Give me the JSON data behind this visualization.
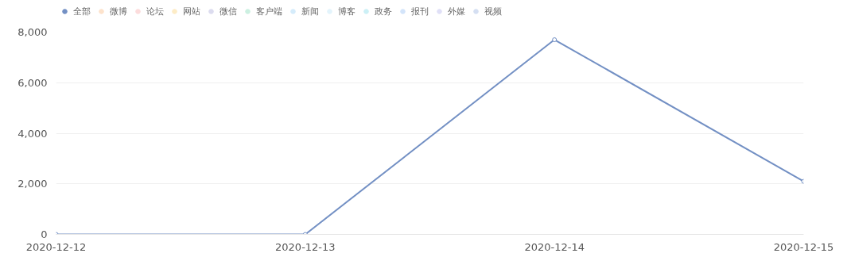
{
  "chart_data": {
    "type": "line",
    "categories": [
      "2020-12-12",
      "2020-12-13",
      "2020-12-14",
      "2020-12-15"
    ],
    "series": [
      {
        "name": "全部",
        "color": "#7390c4",
        "values": [
          0,
          0,
          7700,
          2100
        ]
      },
      {
        "name": "微博",
        "color": "#fde3cc",
        "values": [
          null,
          null,
          null,
          null
        ]
      },
      {
        "name": "论坛",
        "color": "#fcdcdc",
        "values": [
          null,
          null,
          null,
          null
        ]
      },
      {
        "name": "网站",
        "color": "#fdecc6",
        "values": [
          null,
          null,
          null,
          null
        ]
      },
      {
        "name": "微信",
        "color": "#dcdcef",
        "values": [
          null,
          null,
          null,
          null
        ]
      },
      {
        "name": "客户端",
        "color": "#ccf0e1",
        "values": [
          null,
          null,
          null,
          null
        ]
      },
      {
        "name": "新闻",
        "color": "#d5ecfb",
        "values": [
          null,
          null,
          null,
          null
        ]
      },
      {
        "name": "博客",
        "color": "#e3f4fc",
        "values": [
          null,
          null,
          null,
          null
        ]
      },
      {
        "name": "政务",
        "color": "#ccf0f6",
        "values": [
          null,
          null,
          null,
          null
        ]
      },
      {
        "name": "报刊",
        "color": "#d3e4fa",
        "values": [
          null,
          null,
          null,
          null
        ]
      },
      {
        "name": "外媒",
        "color": "#e0e0f7",
        "values": [
          null,
          null,
          null,
          null
        ]
      },
      {
        "name": "视频",
        "color": "#d5dff2",
        "values": [
          null,
          null,
          null,
          null
        ]
      }
    ],
    "ylim": [
      0,
      8000
    ],
    "yticks": [
      0,
      {
        "value": 2000,
        "label": "2,000"
      },
      {
        "value": 4000,
        "label": "4,000"
      },
      {
        "value": 6000,
        "label": "6,000"
      },
      {
        "value": 8000,
        "label": "8,000"
      }
    ],
    "grid": "y",
    "legend": "top left",
    "marker": "circle",
    "line_style": "solid"
  }
}
